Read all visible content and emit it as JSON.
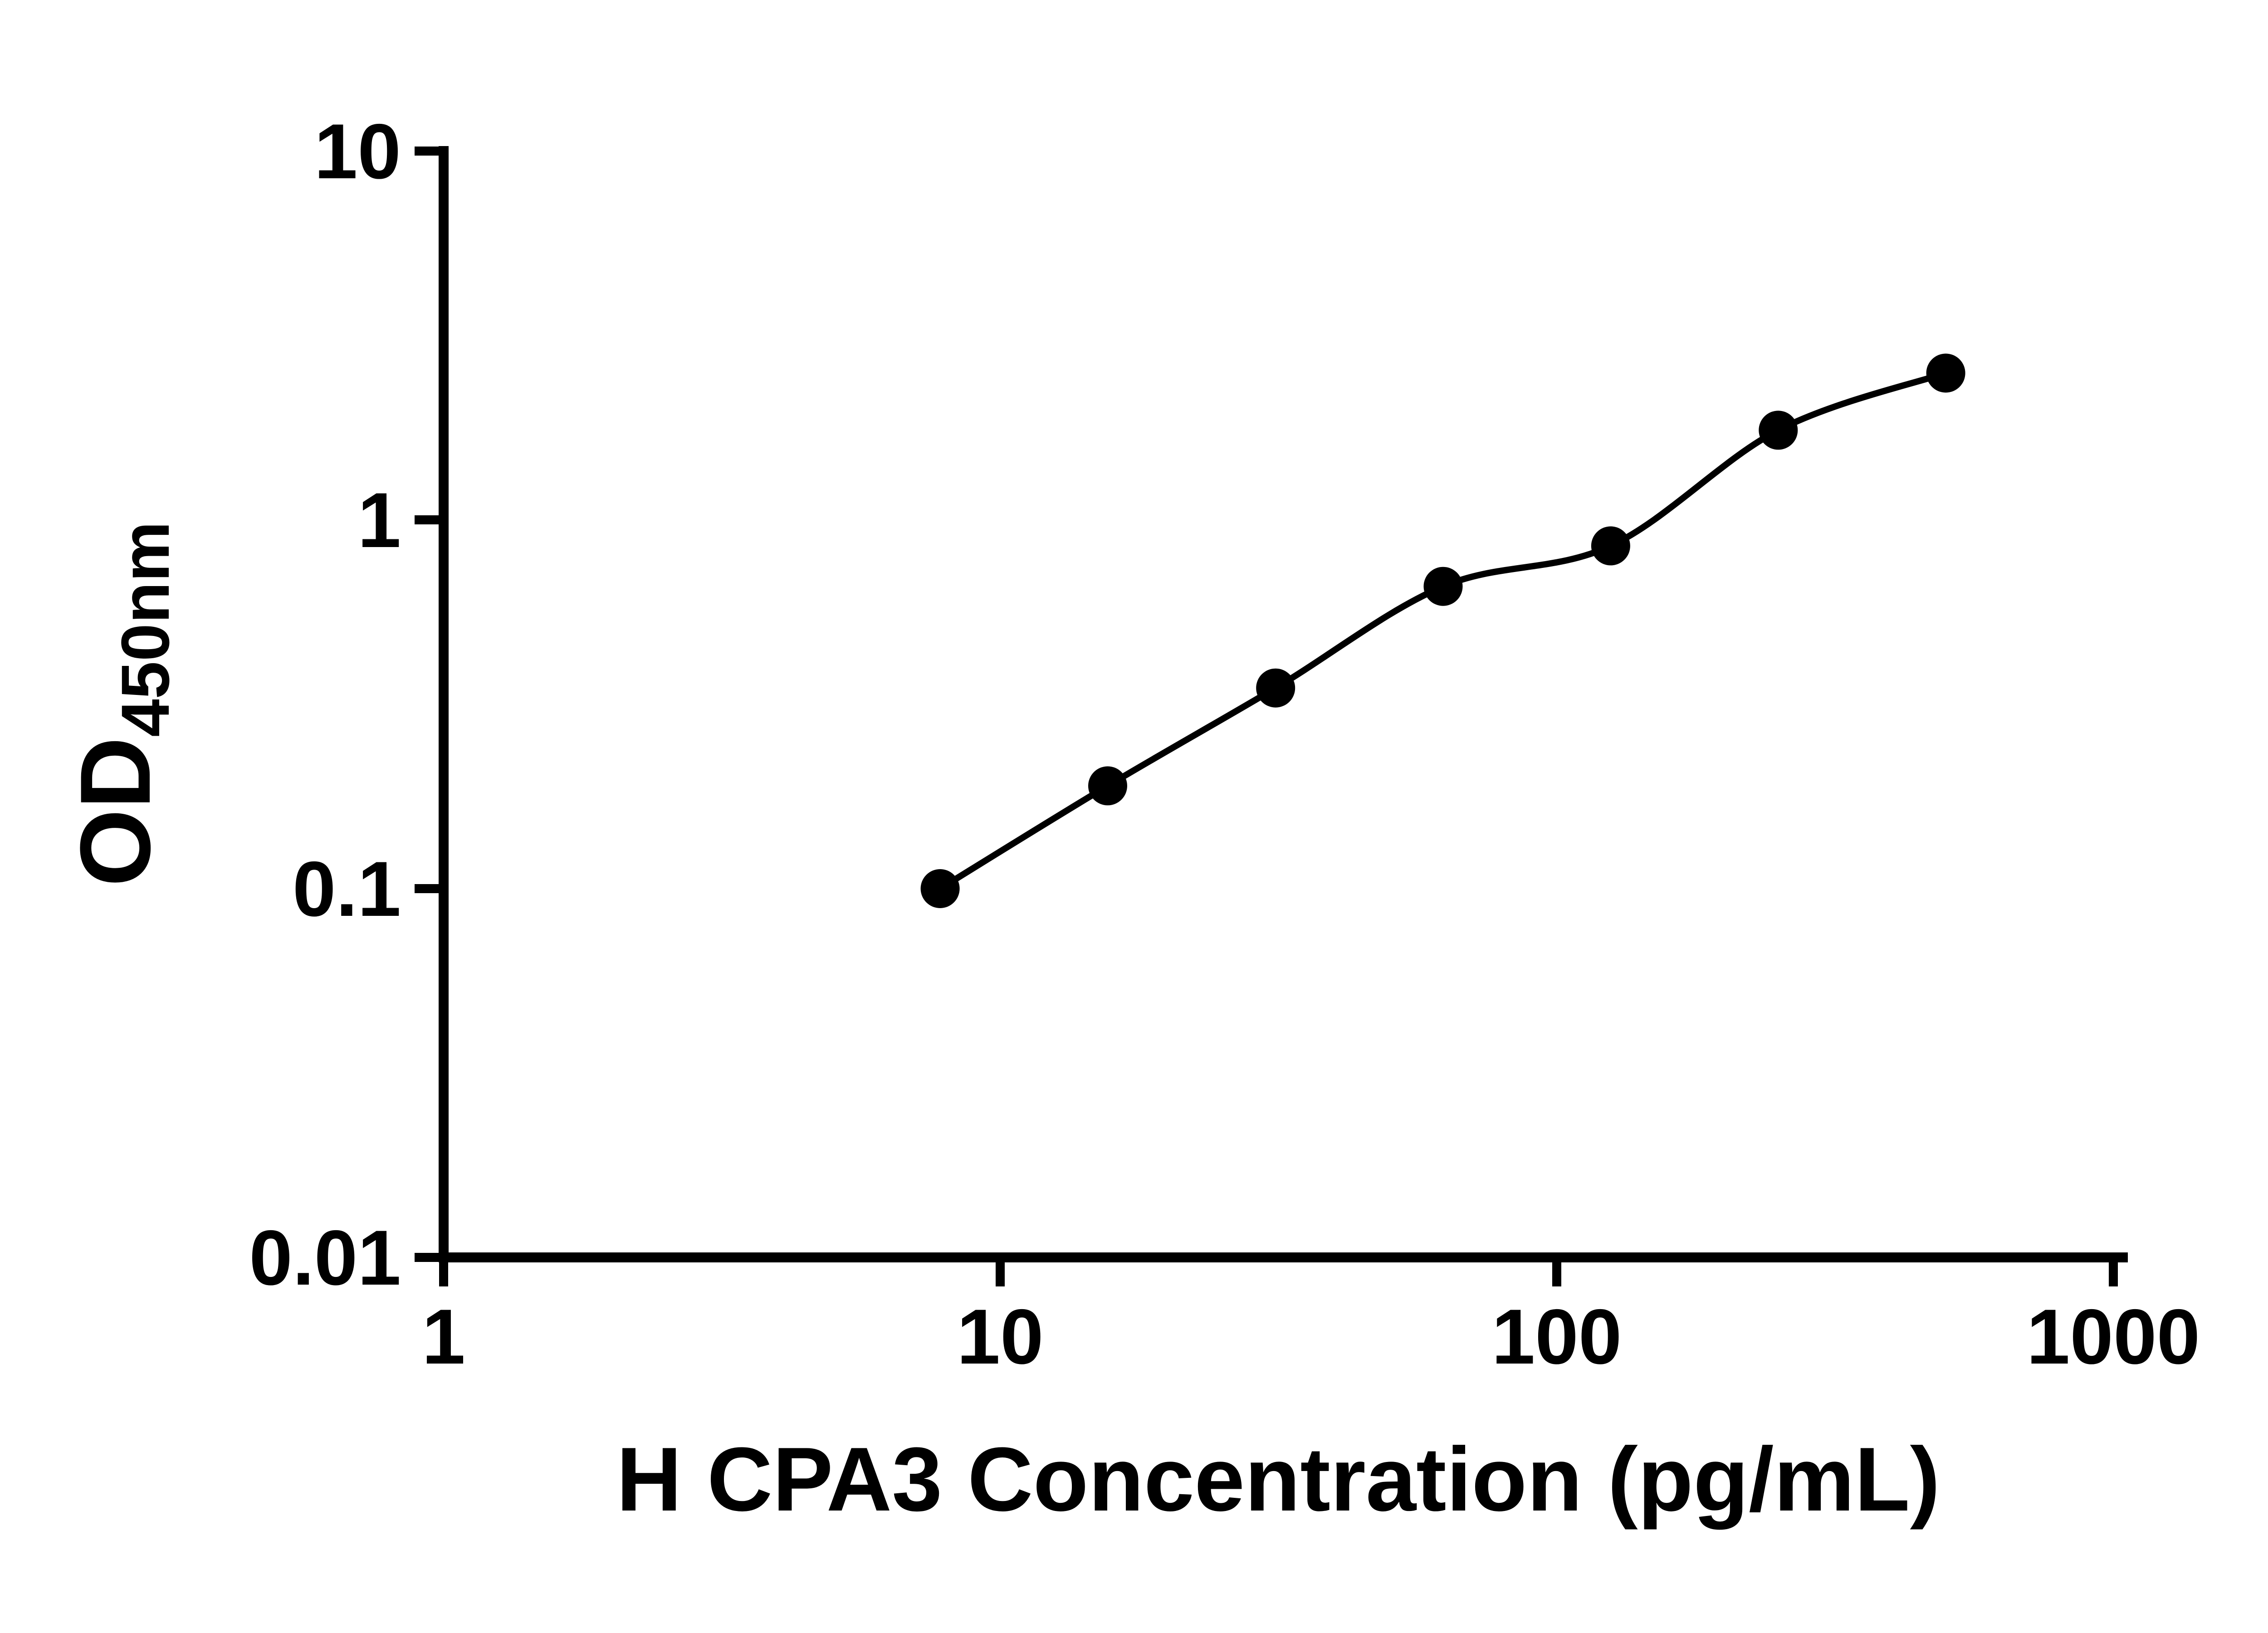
{
  "chart_data": {
    "type": "scatter",
    "title": "",
    "xlabel": "H CPA3 Concentration (pg/mL)",
    "ylabel_main": "OD",
    "ylabel_sub": "450nm",
    "x": [
      7.8,
      15.6,
      31.25,
      62.5,
      125,
      250,
      500
    ],
    "y": [
      0.1,
      0.19,
      0.35,
      0.66,
      0.85,
      1.75,
      2.5
    ],
    "xscale": "log",
    "yscale": "log",
    "xlim": [
      1,
      1000
    ],
    "ylim": [
      0.01,
      10
    ],
    "xticks": [
      1,
      10,
      100,
      1000
    ],
    "xtick_labels": [
      "1",
      "10",
      "100",
      "1000"
    ],
    "yticks": [
      0.01,
      0.1,
      1,
      10
    ],
    "ytick_labels": [
      "0.01",
      "0.1",
      "1",
      "10"
    ],
    "grid": false,
    "legend": false,
    "marker_shape": "filled-circle",
    "marker_color": "#000000",
    "line_color": "#000000",
    "axis_color": "#000000",
    "background_color": "#ffffff"
  }
}
